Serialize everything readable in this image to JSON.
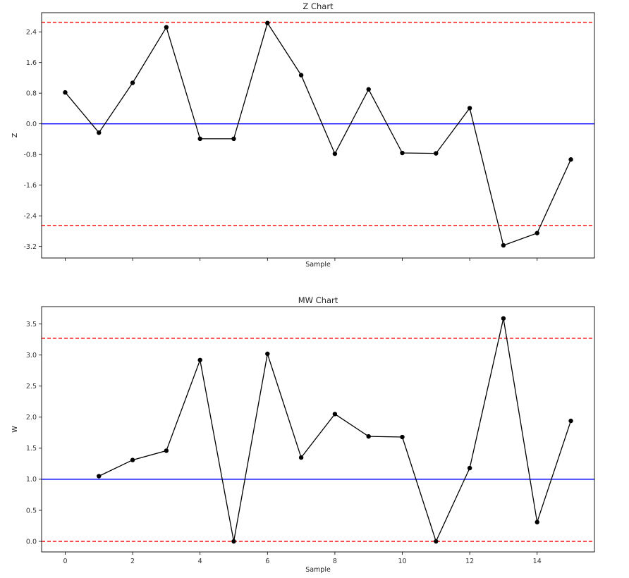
{
  "chart_data": [
    {
      "type": "line",
      "title": "Z Chart",
      "xlabel": "Sample",
      "ylabel": "Z",
      "xlim": [
        -0.7,
        15.7
      ],
      "ylim": [
        -3.5,
        2.9
      ],
      "yticks": [
        -3.2,
        -2.4,
        -1.6,
        -0.8,
        0.0,
        0.8,
        1.6,
        2.4
      ],
      "ytick_labels": [
        "-3.2",
        "-2.4",
        "-1.6",
        "-0.8",
        "0.0",
        "0.8",
        "1.6",
        "2.4"
      ],
      "xticks": [
        0,
        2,
        4,
        6,
        8,
        10,
        12,
        14
      ],
      "xtick_labels": [],
      "center_line": {
        "value": 0.0,
        "color": "#0000ff",
        "style": "solid"
      },
      "control_limits": [
        {
          "value": 2.65,
          "color": "#ff0000",
          "style": "dashed"
        },
        {
          "value": -2.65,
          "color": "#ff0000",
          "style": "dashed"
        }
      ],
      "series": [
        {
          "color": "#000000",
          "marker": "circle",
          "x": [
            0,
            1,
            2,
            3,
            4,
            5,
            6,
            7,
            8,
            9,
            10,
            11,
            12,
            13,
            14,
            15
          ],
          "y": [
            0.82,
            -0.23,
            1.07,
            2.52,
            -0.39,
            -0.39,
            2.63,
            1.27,
            -0.78,
            0.9,
            -0.76,
            -0.77,
            0.41,
            -3.17,
            -2.85,
            -0.93
          ]
        }
      ],
      "grid": false
    },
    {
      "type": "line",
      "title": "MW Chart",
      "xlabel": "Sample",
      "ylabel": "W",
      "xlim": [
        -0.7,
        15.7
      ],
      "ylim": [
        -0.17,
        3.78
      ],
      "yticks": [
        0.0,
        0.5,
        1.0,
        1.5,
        2.0,
        2.5,
        3.0,
        3.5
      ],
      "ytick_labels": [
        "0.0",
        "0.5",
        "1.0",
        "1.5",
        "2.0",
        "2.5",
        "3.0",
        "3.5"
      ],
      "xticks": [
        0,
        2,
        4,
        6,
        8,
        10,
        12,
        14
      ],
      "xtick_labels": [
        "0",
        "2",
        "4",
        "6",
        "8",
        "10",
        "12",
        "14"
      ],
      "center_line": {
        "value": 1.0,
        "color": "#0000ff",
        "style": "solid"
      },
      "control_limits": [
        {
          "value": 3.27,
          "color": "#ff0000",
          "style": "dashed"
        },
        {
          "value": 0.0,
          "color": "#ff0000",
          "style": "dashed"
        }
      ],
      "series": [
        {
          "color": "#000000",
          "marker": "circle",
          "x": [
            1,
            2,
            3,
            4,
            5,
            6,
            7,
            8,
            9,
            10,
            11,
            12,
            13,
            14,
            15
          ],
          "y": [
            1.05,
            1.31,
            1.46,
            2.92,
            0.0,
            3.02,
            1.35,
            2.05,
            1.69,
            1.68,
            0.0,
            1.18,
            3.59,
            0.31,
            1.94
          ]
        }
      ],
      "grid": false
    }
  ]
}
